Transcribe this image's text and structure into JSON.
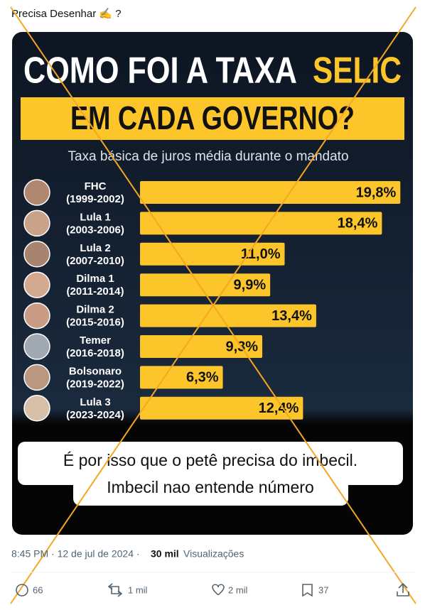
{
  "tweet": {
    "text": "Precisa Desenhar ✍️ ?",
    "time": "8:45 PM · 12 de jul de 2024 ·",
    "views": "30 mil",
    "views_label": "Visualizações",
    "replies": "66",
    "reposts": "1 mil",
    "likes": "2 mil",
    "bookmarks": "37"
  },
  "overlay": [
    "É por isso que o petê precisa do imbecil.",
    "Imbecil nao entende número"
  ],
  "chart_data": {
    "type": "bar",
    "title_lines": [
      "COMO FOI A TAXA",
      "SELIC",
      "EM CADA GOVERNO?"
    ],
    "subtitle": "Taxa básica de juros média durante o mandato",
    "categories": [
      "FHC",
      "Lula 1",
      "Lula 2",
      "Dilma 1",
      "Dilma 2",
      "Temer",
      "Bolsonaro",
      "Lula 3"
    ],
    "periods": [
      "(1999-2002)",
      "(2003-2006)",
      "(2007-2010)",
      "(2011-2014)",
      "(2015-2016)",
      "(2016-2018)",
      "(2019-2022)",
      "(2023-2024)"
    ],
    "values": [
      19.8,
      18.4,
      11.0,
      9.9,
      13.4,
      9.3,
      6.3,
      12.4
    ],
    "value_labels": [
      "19,8%",
      "18,4%",
      "11,0%",
      "9,9%",
      "13,4%",
      "9,3%",
      "6,3%",
      "12,4%"
    ],
    "color": "#fcc62b"
  }
}
